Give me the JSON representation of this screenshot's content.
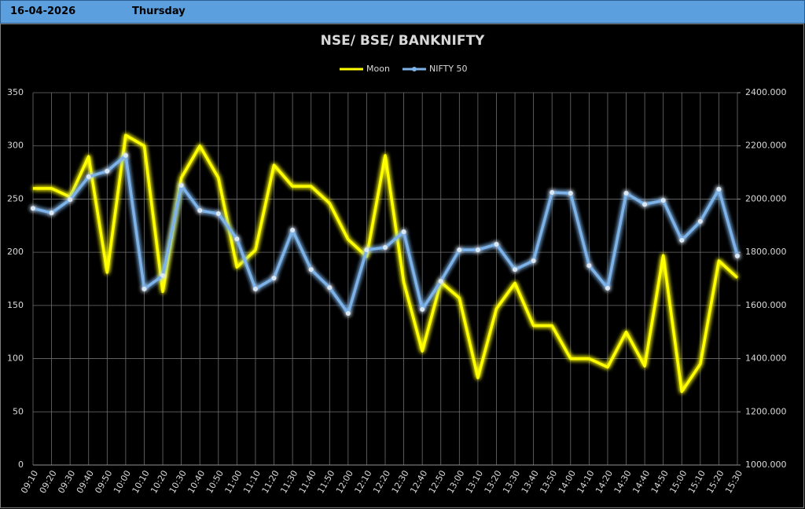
{
  "header": {
    "date": "16-04-2026",
    "day": "Thursday"
  },
  "chart_data": {
    "type": "line",
    "title": "NSE/ BSE/ BANKNIFTY",
    "legend": "top",
    "grid": true,
    "categories": [
      "09:10",
      "09:20",
      "09:30",
      "09:40",
      "09:50",
      "10:00",
      "10:10",
      "10:20",
      "10:30",
      "10:40",
      "10:50",
      "11:00",
      "11:10",
      "11:20",
      "11:30",
      "11:40",
      "11:50",
      "12:00",
      "12:10",
      "12:20",
      "12:30",
      "12:40",
      "12:50",
      "13:00",
      "13:10",
      "13:20",
      "13:30",
      "13:40",
      "13:50",
      "14:00",
      "14:10",
      "14:20",
      "14:30",
      "14:40",
      "14:50",
      "15:00",
      "15:10",
      "15:20",
      "15:30"
    ],
    "series": [
      {
        "name": "Moon",
        "color": "#ffff00",
        "markers": false,
        "values": [
          260,
          260,
          252,
          290,
          181,
          310,
          300,
          163,
          270,
          300,
          270,
          186,
          202,
          282,
          262,
          262,
          246,
          212,
          196,
          291,
          172,
          107,
          172,
          157,
          82,
          147,
          171,
          131,
          131,
          100,
          100,
          92,
          125,
          93,
          197,
          69,
          95,
          192,
          176
        ]
      },
      {
        "name": "NIFTY 50",
        "color": "#7db3e8",
        "axis": "y2",
        "markers": true,
        "values": [
          1965,
          1948,
          1998,
          2084,
          2105,
          2164,
          1662,
          1712,
          2051,
          1957,
          1945,
          1850,
          1662,
          1703,
          1883,
          1735,
          1667,
          1570,
          1809,
          1818,
          1877,
          1585,
          1691,
          1809,
          1809,
          1830,
          1735,
          1768,
          2025,
          2022,
          1750,
          1665,
          2022,
          1980,
          1995,
          1845,
          1916,
          2037,
          1786
        ]
      }
    ],
    "ylim": [
      0,
      350
    ],
    "yticks": [
      0,
      50,
      100,
      150,
      200,
      250,
      300,
      350
    ],
    "y2lim": [
      1000,
      2400
    ],
    "y2ticks": [
      {
        "value": 1000,
        "label": "1000.000"
      },
      {
        "value": 1200,
        "label": "1200.000"
      },
      {
        "value": 1400,
        "label": "1400.000"
      },
      {
        "value": 1600,
        "label": "1600.000"
      },
      {
        "value": 1800,
        "label": "1800.000"
      },
      {
        "value": 2000,
        "label": "2000.000"
      },
      {
        "value": 2200,
        "label": "2200.000"
      },
      {
        "value": 2400,
        "label": "2400.000"
      }
    ]
  }
}
